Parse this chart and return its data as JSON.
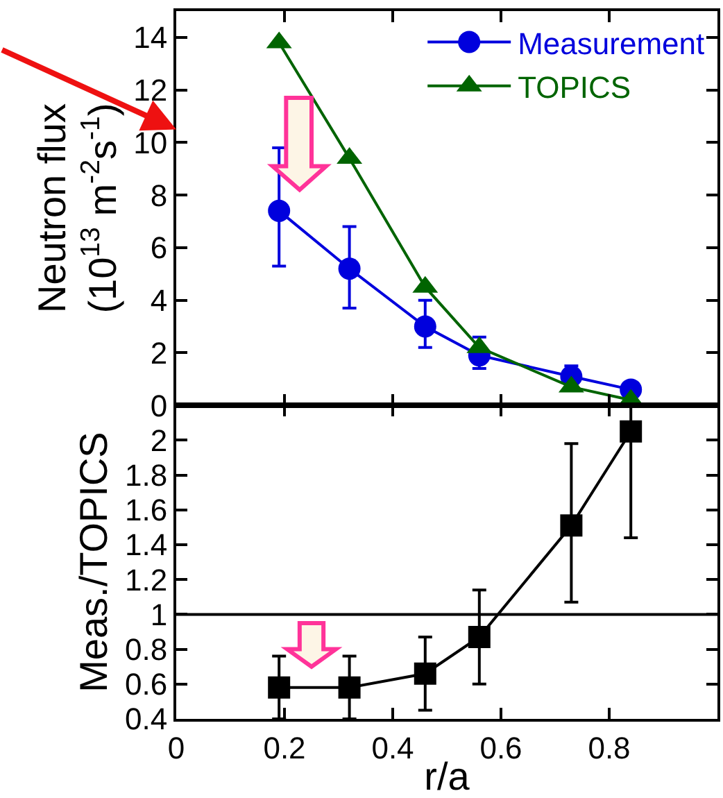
{
  "chart_data": [
    {
      "type": "line",
      "ylabel": "Neutron flux\n(10$^{13}$ m$^{-2}$s$^{-1}$)",
      "xlim": [
        0,
        1
      ],
      "xticks": [
        0,
        0.2,
        0.4,
        0.6,
        0.8
      ],
      "ylim": [
        0,
        15
      ],
      "yticks": [
        0,
        2,
        4,
        6,
        8,
        10,
        12,
        14
      ],
      "tick_labels": "y",
      "legend": "top right",
      "line_style": "solid",
      "series": [
        {
          "name": "Measurement",
          "color": "#0000dd",
          "marker": "circle",
          "x": [
            0.19,
            0.32,
            0.46,
            0.56,
            0.73,
            0.84
          ],
          "values": [
            7.4,
            5.2,
            3.0,
            1.9,
            1.1,
            0.6
          ],
          "errors": [
            [
              5.3,
              9.8
            ],
            [
              3.7,
              6.8
            ],
            [
              2.2,
              4.0
            ],
            [
              1.4,
              2.6
            ],
            [
              1.1,
              1.5
            ],
            null
          ]
        },
        {
          "name": "TOPICS",
          "color": "#006400",
          "marker": "triangle",
          "x": [
            0.19,
            0.32,
            0.46,
            0.56,
            0.73,
            0.84
          ],
          "values": [
            13.8,
            9.4,
            4.5,
            2.2,
            0.7,
            0.2
          ]
        }
      ]
    },
    {
      "type": "line",
      "xlabel": "r/a",
      "ylabel": "Meas./TOPICS",
      "xlim": [
        0,
        1
      ],
      "xticks": [
        0,
        0.2,
        0.4,
        0.6,
        0.8
      ],
      "ylim": [
        0.4,
        2.2
      ],
      "yticks": [
        0.4,
        0.6,
        0.8,
        1,
        1.2,
        1.4,
        1.6,
        1.8,
        2
      ],
      "line_style": "solid",
      "legend": false,
      "ref_lines": [
        {
          "axis": "y",
          "value": 1,
          "color": "#000000"
        }
      ],
      "series": [
        {
          "color": "#000000",
          "marker": "square",
          "x": [
            0.19,
            0.32,
            0.46,
            0.56,
            0.73,
            0.84
          ],
          "values": [
            0.58,
            0.58,
            0.66,
            0.87,
            1.51,
            2.05
          ],
          "errors": [
            [
              0.4,
              0.76
            ],
            [
              0.4,
              0.76
            ],
            [
              0.45,
              0.87
            ],
            [
              0.6,
              1.14
            ],
            [
              1.07,
              1.98
            ],
            [
              1.44,
              2.2
            ]
          ]
        }
      ]
    }
  ]
}
